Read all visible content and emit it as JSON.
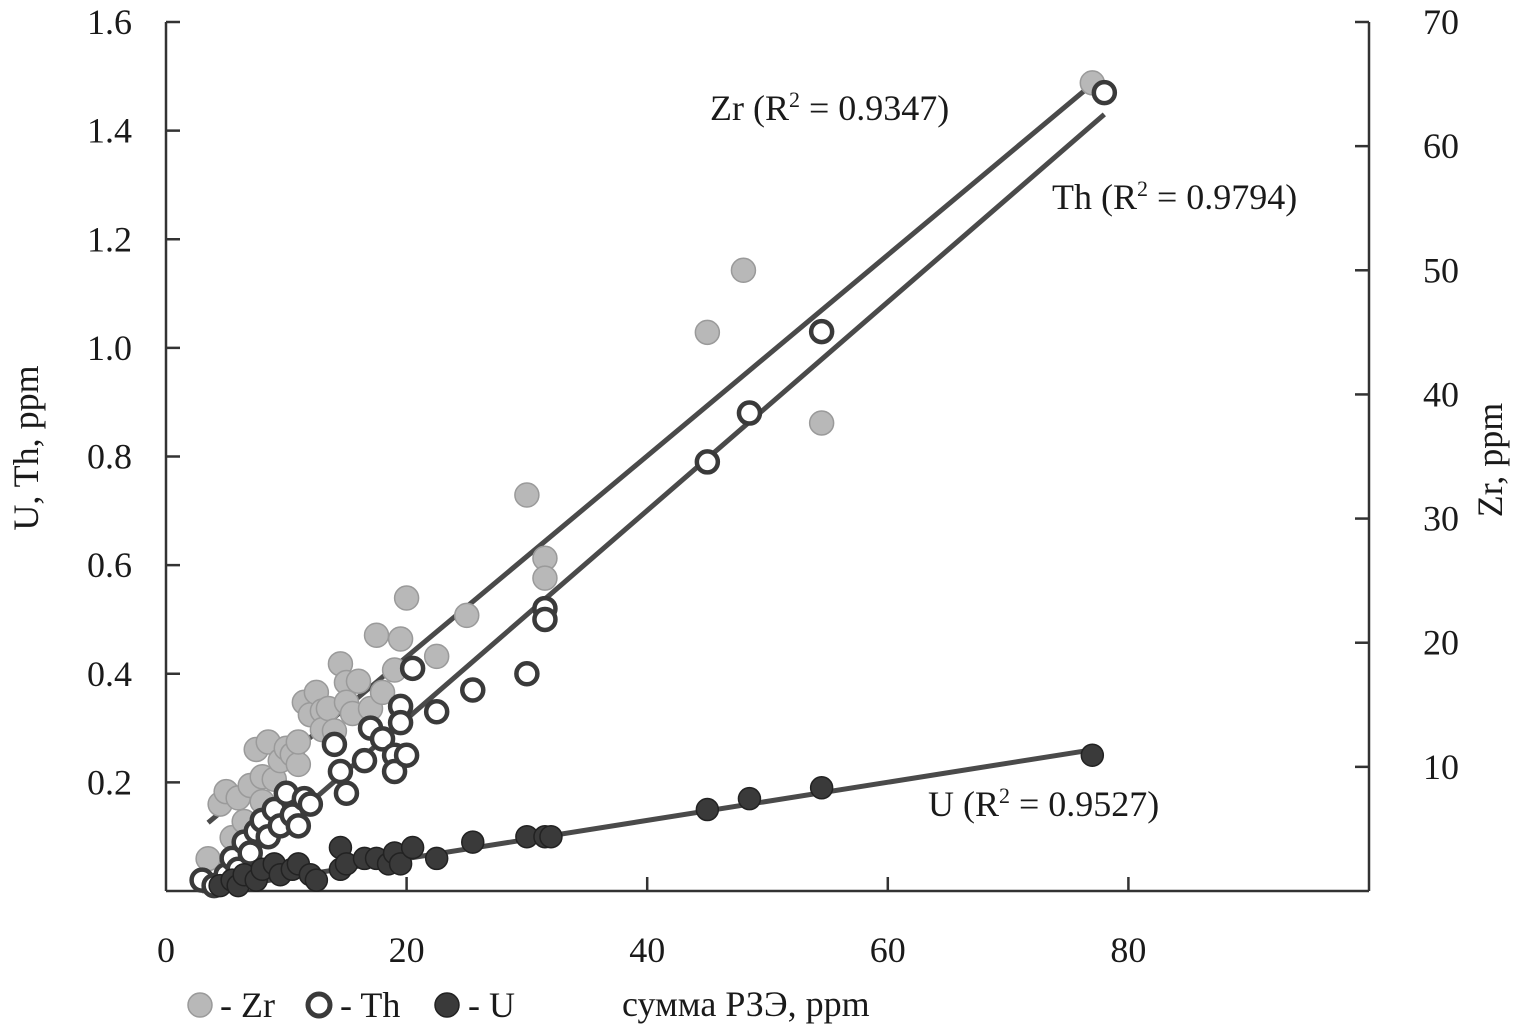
{
  "chart_data": {
    "type": "scatter",
    "xlabel": "сумма РЗЭ, ppm",
    "ylabel_left": "U, Th, ppm",
    "ylabel_right": "Zr, ppm",
    "xlim": [
      0,
      100
    ],
    "ylim_left": [
      0,
      1.6
    ],
    "ylim_right": [
      0,
      70
    ],
    "x_ticks": [
      0,
      20,
      40,
      60,
      80
    ],
    "y_ticks_left": [
      0.2,
      0.4,
      0.6,
      0.8,
      1.0,
      1.2,
      1.4,
      1.6
    ],
    "y_ticks_right": [
      10,
      20,
      30,
      40,
      50,
      60,
      70
    ],
    "grid": false,
    "legend_placement": "bottom-left",
    "legend": [
      {
        "symbol": "filled-gray",
        "label": "- Zr"
      },
      {
        "symbol": "open-circle",
        "label": "- Th"
      },
      {
        "symbol": "filled-dark",
        "label": "- U"
      }
    ],
    "series": [
      {
        "name": "Zr",
        "axis": "right",
        "color": "#b8b8b8",
        "points": [
          [
            3.5,
            2.6
          ],
          [
            4.5,
            7.0
          ],
          [
            5,
            8.0
          ],
          [
            5.5,
            4.3
          ],
          [
            6,
            7.5
          ],
          [
            6.5,
            5.6
          ],
          [
            7,
            8.5
          ],
          [
            7.5,
            11.4
          ],
          [
            8,
            9.2
          ],
          [
            8,
            7.2
          ],
          [
            8.5,
            12.0
          ],
          [
            9,
            9.0
          ],
          [
            9.5,
            10.5
          ],
          [
            10,
            11.5
          ],
          [
            10.5,
            11.0
          ],
          [
            11,
            10.2
          ],
          [
            11,
            12.0
          ],
          [
            11.5,
            15.2
          ],
          [
            12,
            14.2
          ],
          [
            12.5,
            16.0
          ],
          [
            13,
            14.5
          ],
          [
            13,
            13.0
          ],
          [
            13.5,
            14.7
          ],
          [
            14,
            12.9
          ],
          [
            14.5,
            18.3
          ],
          [
            15,
            16.8
          ],
          [
            15,
            15.2
          ],
          [
            15.5,
            14.3
          ],
          [
            16,
            16.9
          ],
          [
            17,
            14.7
          ],
          [
            17.5,
            20.6
          ],
          [
            18,
            16.0
          ],
          [
            19,
            17.8
          ],
          [
            19.5,
            20.3
          ],
          [
            20,
            23.6
          ],
          [
            22.5,
            18.9
          ],
          [
            25,
            22.2
          ],
          [
            30,
            31.9
          ],
          [
            31.5,
            26.8
          ],
          [
            31.5,
            25.2
          ],
          [
            45,
            45.0
          ],
          [
            48,
            50.0
          ],
          [
            54.5,
            37.7
          ],
          [
            77,
            65.1
          ]
        ]
      },
      {
        "name": "Th",
        "axis": "left",
        "color": "#ffffff",
        "points": [
          [
            3.0,
            0.02
          ],
          [
            4.0,
            0.01
          ],
          [
            5.0,
            0.03
          ],
          [
            5.5,
            0.06
          ],
          [
            6.0,
            0.04
          ],
          [
            6.5,
            0.09
          ],
          [
            7.0,
            0.07
          ],
          [
            7.5,
            0.11
          ],
          [
            8.0,
            0.13
          ],
          [
            8.5,
            0.1
          ],
          [
            9.0,
            0.15
          ],
          [
            9.5,
            0.12
          ],
          [
            10.0,
            0.18
          ],
          [
            10.5,
            0.14
          ],
          [
            11.0,
            0.12
          ],
          [
            11.5,
            0.17
          ],
          [
            12.0,
            0.16
          ],
          [
            14.0,
            0.27
          ],
          [
            14.5,
            0.22
          ],
          [
            15.0,
            0.18
          ],
          [
            16.5,
            0.24
          ],
          [
            17.0,
            0.3
          ],
          [
            18.0,
            0.28
          ],
          [
            19.0,
            0.25
          ],
          [
            19.0,
            0.22
          ],
          [
            19.5,
            0.34
          ],
          [
            19.5,
            0.31
          ],
          [
            20.5,
            0.41
          ],
          [
            20.0,
            0.25
          ],
          [
            22.5,
            0.33
          ],
          [
            25.5,
            0.37
          ],
          [
            30.0,
            0.4
          ],
          [
            31.5,
            0.52
          ],
          [
            31.5,
            0.5
          ],
          [
            45.0,
            0.79
          ],
          [
            48.5,
            0.88
          ],
          [
            54.5,
            1.03
          ],
          [
            78.0,
            1.47
          ]
        ]
      },
      {
        "name": "U",
        "axis": "left",
        "color": "#3a3a3a",
        "points": [
          [
            4.5,
            0.01
          ],
          [
            5.5,
            0.02
          ],
          [
            6.0,
            0.01
          ],
          [
            6.5,
            0.03
          ],
          [
            7.5,
            0.02
          ],
          [
            8.0,
            0.04
          ],
          [
            9.0,
            0.05
          ],
          [
            9.5,
            0.03
          ],
          [
            10.5,
            0.04
          ],
          [
            11.0,
            0.05
          ],
          [
            12.0,
            0.03
          ],
          [
            12.5,
            0.02
          ],
          [
            14.5,
            0.08
          ],
          [
            14.5,
            0.04
          ],
          [
            15.0,
            0.05
          ],
          [
            16.5,
            0.06
          ],
          [
            17.5,
            0.06
          ],
          [
            18.5,
            0.05
          ],
          [
            19.0,
            0.07
          ],
          [
            19.5,
            0.05
          ],
          [
            20.5,
            0.08
          ],
          [
            22.5,
            0.06
          ],
          [
            25.5,
            0.09
          ],
          [
            30.0,
            0.1
          ],
          [
            31.5,
            0.1
          ],
          [
            32.0,
            0.1
          ],
          [
            45.0,
            0.15
          ],
          [
            48.5,
            0.17
          ],
          [
            54.5,
            0.19
          ],
          [
            77.0,
            0.25
          ]
        ]
      }
    ],
    "trendlines": [
      {
        "series": "Zr",
        "axis": "right",
        "x": [
          3.5,
          77.0
        ],
        "y": [
          5.5,
          65.0
        ],
        "label_prefix": "Zr (R",
        "label_sup": "2",
        "label_suffix": " = 0.9347)"
      },
      {
        "series": "Th",
        "axis": "left",
        "x": [
          3.5,
          78.0
        ],
        "y": [
          0.0,
          1.43
        ],
        "label_prefix": "Th (R",
        "label_sup": "2",
        "label_suffix": " = 0.9794)"
      },
      {
        "series": "U",
        "axis": "left",
        "x": [
          3.0,
          77.0
        ],
        "y": [
          0.0,
          0.26
        ],
        "label_prefix": "U (R",
        "label_sup": "2",
        "label_suffix": " = 0.9527)"
      }
    ]
  }
}
